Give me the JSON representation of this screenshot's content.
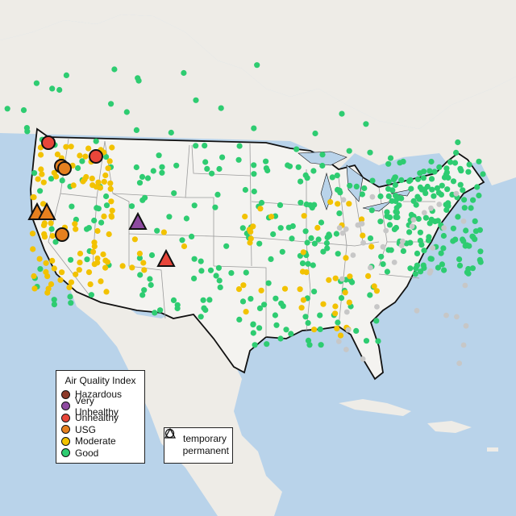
{
  "legend_aqi": {
    "title": "Air Quality Index",
    "items": [
      {
        "label": "Hazardous",
        "color": "#8c3a2a"
      },
      {
        "label": "Very Unhealthy",
        "color": "#8e4aa0"
      },
      {
        "label": "Unhealthy",
        "color": "#e8463a"
      },
      {
        "label": "USG",
        "color": "#e6801f"
      },
      {
        "label": "Moderate",
        "color": "#f2c200"
      },
      {
        "label": "Good",
        "color": "#2ecc71"
      }
    ]
  },
  "legend_type": {
    "items": [
      {
        "label": "temporary",
        "icon": "circle-icon"
      },
      {
        "label": "permanent",
        "icon": "triangle-icon"
      }
    ]
  },
  "colors": {
    "water": "#b9d3ea",
    "land": "#eeece7",
    "us_land": "#f4f3f0",
    "border": "#111111",
    "state_lines": "#9b9b9b",
    "offline": "#c7c7c7"
  }
}
